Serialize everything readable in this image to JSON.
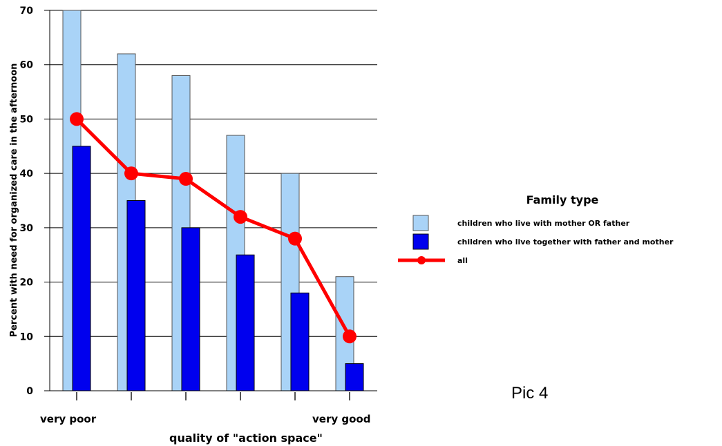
{
  "chart_data": {
    "type": "bar",
    "categories": [
      "",
      "",
      "",
      "",
      "",
      ""
    ],
    "x_end_labels": {
      "left": "very poor",
      "right": "very good"
    },
    "xlabel": "quality of \"action space\"",
    "ylabel": "Percent with need for organized care in the afternoon",
    "ylim": [
      0,
      70
    ],
    "yticks": [
      0,
      10,
      20,
      30,
      40,
      50,
      60,
      70
    ],
    "grid": true,
    "legend_title": "Family type",
    "legend_position": "right",
    "series": [
      {
        "name": "children who live with mother OR father",
        "kind": "bar",
        "color": "#a9d3f7",
        "values": [
          70,
          62,
          58,
          47,
          40,
          21
        ]
      },
      {
        "name": "children who live together with father and mother",
        "kind": "bar",
        "color": "#0000ee",
        "values": [
          45,
          35,
          30,
          25,
          18,
          5
        ]
      },
      {
        "name": "all",
        "kind": "line",
        "color": "#ff0000",
        "values": [
          50,
          40,
          39,
          32,
          28,
          10
        ]
      }
    ]
  },
  "annotation": "Pic 4"
}
